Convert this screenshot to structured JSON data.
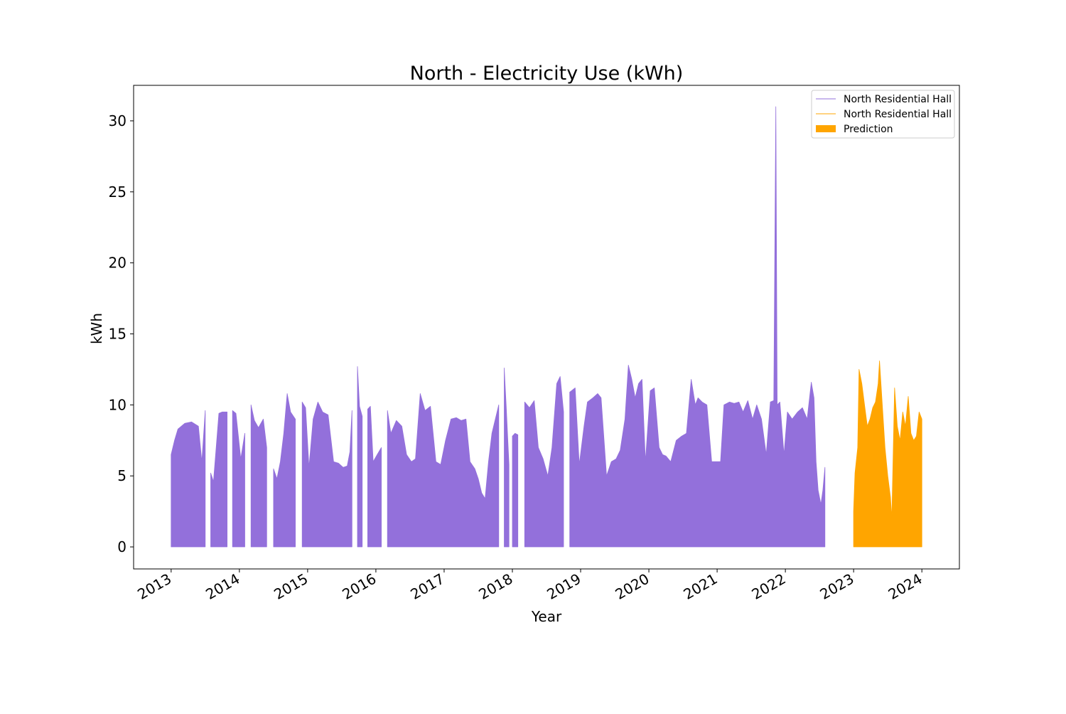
{
  "chart_data": {
    "type": "area",
    "title": "North - Electricity Use (kWh)",
    "xlabel": "Year",
    "ylabel": "kWh",
    "xlim": [
      2012.45,
      2024.55
    ],
    "ylim": [
      -1.55,
      32.5
    ],
    "x_ticks": [
      2013,
      2014,
      2015,
      2016,
      2017,
      2018,
      2019,
      2020,
      2021,
      2022,
      2023,
      2024
    ],
    "x_tick_labels": [
      "2013",
      "2014",
      "2015",
      "2016",
      "2017",
      "2018",
      "2019",
      "2020",
      "2021",
      "2022",
      "2023",
      "2024"
    ],
    "y_ticks": [
      0,
      5,
      10,
      15,
      20,
      25,
      30
    ],
    "y_tick_labels": [
      "0",
      "5",
      "10",
      "15",
      "20",
      "25",
      "30"
    ],
    "grid": false,
    "legend": {
      "placement": "top-right",
      "entries": [
        {
          "label": "North Residential Hall",
          "kind": "line",
          "color": "#9370db"
        },
        {
          "label": "North Residential Hall",
          "kind": "line",
          "color": "#ffa500"
        },
        {
          "label": "Prediction",
          "kind": "patch",
          "color": "#ffa500"
        }
      ]
    },
    "series": [
      {
        "name": "North Residential Hall",
        "color": "#9370db",
        "style": "filled-area",
        "segments": [
          [
            [
              2013.0,
              6.5
            ],
            [
              2013.05,
              7.5
            ],
            [
              2013.1,
              8.3
            ],
            [
              2013.2,
              8.7
            ],
            [
              2013.3,
              8.8
            ],
            [
              2013.4,
              8.5
            ],
            [
              2013.45,
              6.0
            ],
            [
              2013.5,
              9.6
            ]
          ],
          [
            [
              2013.58,
              5.2
            ],
            [
              2013.62,
              4.6
            ],
            [
              2013.66,
              7.0
            ],
            [
              2013.7,
              9.4
            ],
            [
              2013.75,
              9.5
            ],
            [
              2013.82,
              9.5
            ]
          ],
          [
            [
              2013.9,
              9.6
            ],
            [
              2013.95,
              9.4
            ],
            [
              2014.02,
              6.2
            ],
            [
              2014.08,
              8.0
            ]
          ],
          [
            [
              2014.17,
              10.0
            ],
            [
              2014.22,
              8.9
            ],
            [
              2014.28,
              8.4
            ],
            [
              2014.35,
              9.0
            ],
            [
              2014.4,
              7.0
            ]
          ],
          [
            [
              2014.5,
              5.5
            ],
            [
              2014.55,
              4.8
            ],
            [
              2014.6,
              6.0
            ],
            [
              2014.65,
              8.0
            ],
            [
              2014.7,
              10.8
            ],
            [
              2014.75,
              9.5
            ],
            [
              2014.82,
              9.0
            ]
          ],
          [
            [
              2014.92,
              10.2
            ],
            [
              2014.97,
              9.8
            ],
            [
              2015.02,
              5.6
            ],
            [
              2015.08,
              9.0
            ],
            [
              2015.15,
              10.2
            ],
            [
              2015.22,
              9.5
            ],
            [
              2015.3,
              9.3
            ],
            [
              2015.38,
              6.0
            ],
            [
              2015.45,
              5.9
            ],
            [
              2015.52,
              5.6
            ],
            [
              2015.58,
              5.7
            ],
            [
              2015.62,
              6.7
            ],
            [
              2015.65,
              9.6
            ]
          ],
          [
            [
              2015.73,
              12.7
            ],
            [
              2015.76,
              9.9
            ],
            [
              2015.8,
              9.2
            ]
          ],
          [
            [
              2015.88,
              9.7
            ],
            [
              2015.92,
              9.9
            ],
            [
              2015.96,
              6.0
            ],
            [
              2016.02,
              6.5
            ],
            [
              2016.08,
              7.0
            ]
          ],
          [
            [
              2016.17,
              9.6
            ],
            [
              2016.22,
              8.0
            ],
            [
              2016.3,
              8.9
            ],
            [
              2016.38,
              8.5
            ],
            [
              2016.45,
              6.5
            ],
            [
              2016.52,
              6.0
            ],
            [
              2016.58,
              6.2
            ],
            [
              2016.65,
              10.8
            ],
            [
              2016.72,
              9.6
            ],
            [
              2016.8,
              9.9
            ],
            [
              2016.88,
              6.0
            ],
            [
              2016.95,
              5.8
            ],
            [
              2017.02,
              7.5
            ],
            [
              2017.1,
              9.0
            ],
            [
              2017.18,
              9.1
            ],
            [
              2017.25,
              8.9
            ],
            [
              2017.32,
              9.0
            ],
            [
              2017.38,
              6.0
            ],
            [
              2017.45,
              5.5
            ],
            [
              2017.5,
              4.8
            ],
            [
              2017.55,
              3.8
            ],
            [
              2017.6,
              3.4
            ],
            [
              2017.65,
              6.0
            ],
            [
              2017.7,
              8.0
            ],
            [
              2017.75,
              9.0
            ],
            [
              2017.8,
              10.0
            ]
          ],
          [
            [
              2017.88,
              12.6
            ],
            [
              2017.91,
              9.9
            ],
            [
              2017.95,
              5.8
            ]
          ],
          [
            [
              2018.0,
              7.8
            ],
            [
              2018.04,
              8.0
            ],
            [
              2018.08,
              7.9
            ]
          ],
          [
            [
              2018.18,
              10.2
            ],
            [
              2018.25,
              9.8
            ],
            [
              2018.32,
              10.3
            ],
            [
              2018.38,
              7.0
            ],
            [
              2018.45,
              6.2
            ],
            [
              2018.52,
              5.0
            ],
            [
              2018.58,
              7.0
            ],
            [
              2018.65,
              11.5
            ],
            [
              2018.7,
              12.0
            ],
            [
              2018.75,
              9.5
            ]
          ],
          [
            [
              2018.84,
              10.9
            ],
            [
              2018.92,
              11.2
            ],
            [
              2018.98,
              5.8
            ],
            [
              2019.05,
              8.5
            ],
            [
              2019.1,
              10.2
            ],
            [
              2019.18,
              10.5
            ],
            [
              2019.25,
              10.8
            ],
            [
              2019.3,
              10.5
            ],
            [
              2019.38,
              5.0
            ],
            [
              2019.45,
              6.0
            ],
            [
              2019.52,
              6.2
            ],
            [
              2019.58,
              6.8
            ],
            [
              2019.65,
              9.0
            ],
            [
              2019.7,
              12.8
            ],
            [
              2019.75,
              11.8
            ],
            [
              2019.8,
              10.5
            ],
            [
              2019.85,
              11.5
            ],
            [
              2019.9,
              11.8
            ],
            [
              2019.95,
              6.0
            ],
            [
              2020.02,
              11.0
            ],
            [
              2020.08,
              11.2
            ],
            [
              2020.15,
              7.0
            ],
            [
              2020.2,
              6.5
            ],
            [
              2020.25,
              6.4
            ],
            [
              2020.32,
              6.0
            ],
            [
              2020.4,
              7.5
            ],
            [
              2020.48,
              7.8
            ],
            [
              2020.55,
              8.0
            ],
            [
              2020.62,
              11.8
            ],
            [
              2020.68,
              10.0
            ],
            [
              2020.72,
              10.5
            ],
            [
              2020.78,
              10.2
            ],
            [
              2020.85,
              10.0
            ],
            [
              2020.92,
              6.0
            ],
            [
              2020.98,
              6.0
            ],
            [
              2021.05,
              6.0
            ],
            [
              2021.1,
              10.0
            ],
            [
              2021.18,
              10.2
            ],
            [
              2021.25,
              10.1
            ],
            [
              2021.32,
              10.2
            ],
            [
              2021.38,
              9.5
            ],
            [
              2021.45,
              10.3
            ],
            [
              2021.52,
              9.0
            ],
            [
              2021.58,
              10.0
            ],
            [
              2021.65,
              9.0
            ],
            [
              2021.72,
              6.5
            ],
            [
              2021.78,
              10.2
            ],
            [
              2021.83,
              10.3
            ],
            [
              2021.86,
              31.0
            ],
            [
              2021.88,
              10.0
            ],
            [
              2021.92,
              10.2
            ],
            [
              2021.98,
              6.5
            ],
            [
              2022.03,
              9.5
            ],
            [
              2022.1,
              9.0
            ],
            [
              2022.18,
              9.5
            ],
            [
              2022.25,
              9.8
            ],
            [
              2022.32,
              9.0
            ],
            [
              2022.38,
              11.6
            ],
            [
              2022.42,
              10.5
            ],
            [
              2022.45,
              6.0
            ],
            [
              2022.48,
              4.0
            ],
            [
              2022.52,
              3.0
            ],
            [
              2022.55,
              4.0
            ],
            [
              2022.58,
              5.6
            ]
          ]
        ]
      },
      {
        "name": "Prediction",
        "color": "#ffa500",
        "style": "filled-area",
        "segments": [
          [
            [
              2023.0,
              2.5
            ],
            [
              2023.02,
              5.2
            ],
            [
              2023.06,
              7.0
            ],
            [
              2023.08,
              12.5
            ],
            [
              2023.12,
              11.5
            ],
            [
              2023.16,
              10.0
            ],
            [
              2023.2,
              8.5
            ],
            [
              2023.24,
              9.0
            ],
            [
              2023.28,
              9.8
            ],
            [
              2023.32,
              10.2
            ],
            [
              2023.36,
              11.5
            ],
            [
              2023.38,
              13.1
            ],
            [
              2023.42,
              10.0
            ],
            [
              2023.46,
              7.0
            ],
            [
              2023.5,
              5.0
            ],
            [
              2023.54,
              3.5
            ],
            [
              2023.56,
              2.0
            ],
            [
              2023.6,
              11.2
            ],
            [
              2023.64,
              8.5
            ],
            [
              2023.68,
              7.5
            ],
            [
              2023.72,
              9.5
            ],
            [
              2023.76,
              8.5
            ],
            [
              2023.8,
              10.6
            ],
            [
              2023.84,
              8.0
            ],
            [
              2023.88,
              7.5
            ],
            [
              2023.92,
              7.8
            ],
            [
              2023.96,
              9.5
            ],
            [
              2024.0,
              9.0
            ]
          ]
        ]
      }
    ]
  }
}
